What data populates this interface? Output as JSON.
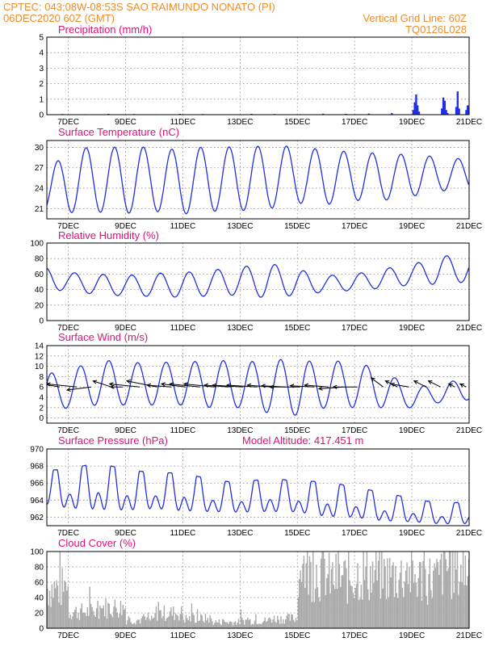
{
  "header": {
    "line1_left": "CPTEC:   043:08W-08:53S  SAO RAIMUNDO NONATO (PI)",
    "line2_left": "06DEC2020 60Z (GMT)",
    "line2_right": "Vertical Grid Line: 60Z",
    "line3_right": "TQ0126L028"
  },
  "colors": {
    "header": "#f08c28",
    "panel_title": "#e0107a",
    "curve": "#2030e0",
    "cloud_bars": "#aaaaaa",
    "wind_arrows": "#000000"
  },
  "x_axis": {
    "tick_labels": [
      "7DEC",
      "9DEC",
      "11DEC",
      "13DEC",
      "15DEC",
      "17DEC",
      "19DEC",
      "21DEC"
    ],
    "tick_days": [
      7,
      9,
      11,
      13,
      15,
      17,
      19,
      21
    ],
    "range_days": [
      6.25,
      21
    ]
  },
  "chart_data": [
    {
      "type": "bar",
      "title": "Precipitation (mm/h)",
      "ylim": [
        0,
        5
      ],
      "yticks": [
        0,
        1,
        2,
        3,
        4,
        5
      ],
      "x": [
        6.8,
        7.6,
        8.4,
        9.3,
        10.1,
        10.9,
        11.7,
        12.6,
        13.4,
        14.2,
        15.1,
        15.9,
        16.7,
        17.5,
        18.3,
        19.05,
        19.1,
        19.15,
        19.2,
        19.25,
        20.05,
        20.1,
        20.15,
        20.2,
        20.25,
        20.55,
        20.6,
        20.65,
        20.9,
        20.95,
        21.0
      ],
      "values": [
        0.04,
        0.03,
        0.05,
        0.04,
        0.03,
        0.05,
        0.04,
        0.03,
        0.05,
        0.04,
        0.03,
        0.06,
        0.05,
        0.07,
        0.1,
        0.3,
        0.8,
        1.3,
        0.6,
        0.2,
        0.4,
        1.1,
        0.9,
        0.3,
        0.1,
        0.5,
        1.5,
        0.4,
        0.3,
        0.6,
        0.2
      ]
    },
    {
      "type": "line",
      "title": "Surface Temperature (nC)",
      "ylim": [
        19.5,
        31
      ],
      "yticks": [
        21,
        24,
        27,
        30
      ],
      "day_phase": 0.62,
      "min_phase": 0.22,
      "daily_max": [
        25.5,
        29.5,
        30.2,
        29.9,
        30.1,
        29.5,
        30.3,
        29.9,
        30.3,
        30.1,
        29.6,
        29.3,
        29.1,
        28.9,
        28.6,
        28.2
      ],
      "daily_min": [
        20.6,
        20.4,
        20.5,
        20.3,
        20.6,
        20.2,
        20.6,
        20.7,
        21.0,
        21.8,
        21.6,
        22.2,
        22.2,
        22.8,
        23.6,
        23.8
      ]
    },
    {
      "type": "line",
      "title": "Relative Humidity (%)",
      "ylim": [
        0,
        100
      ],
      "yticks": [
        0,
        20,
        40,
        60,
        80,
        100
      ],
      "day_phase": 0.22,
      "min_phase": 0.62,
      "daily_max": [
        70,
        62,
        60,
        58,
        61,
        62,
        65,
        69,
        74,
        66,
        58,
        60,
        67,
        72,
        84,
        82
      ],
      "daily_min": [
        36,
        40,
        33,
        32,
        31,
        30,
        32,
        33,
        29,
        33,
        37,
        39,
        42,
        46,
        47,
        50
      ]
    },
    {
      "type": "line",
      "title": "Surface Wind (m/s)",
      "ylim": [
        -1,
        14
      ],
      "yticks": [
        0,
        2,
        4,
        6,
        8,
        10,
        12,
        14
      ],
      "day_phase": 0.42,
      "min_phase": 0.92,
      "daily_max": [
        8.5,
        9.0,
        11.5,
        10.5,
        11.0,
        10.5,
        11.5,
        10.5,
        11.5,
        11.0,
        11.0,
        11.0,
        9.0,
        6.0,
        6.5,
        8.0
      ],
      "daily_min": [
        0.5,
        2.0,
        2.5,
        2.5,
        2.5,
        2.5,
        2.0,
        2.0,
        1.0,
        0.5,
        2.0,
        2.0,
        2.0,
        2.0,
        3.0,
        3.5
      ],
      "arrows": {
        "x": [
          6.7,
          7.3,
          7.8,
          8.5,
          8.9,
          9.5,
          10.1,
          10.6,
          11.1,
          11.6,
          12.1,
          12.6,
          13.1,
          13.6,
          14.1,
          14.6,
          15.1,
          15.6,
          16.1,
          16.6,
          17.1,
          18.0,
          18.5,
          18.9,
          19.5,
          20.0,
          20.5,
          20.9
        ],
        "u": [
          -3,
          -5,
          -4,
          -3,
          -2,
          -5,
          -5,
          -4,
          -4,
          -5,
          -5,
          -4,
          -5,
          -5,
          -4,
          -4,
          -5,
          -4,
          -4,
          -4,
          -4,
          -2,
          -2,
          -3,
          -2,
          -2,
          -1,
          -1
        ],
        "v": [
          0.5,
          0.5,
          -0.5,
          1,
          0,
          0.5,
          1,
          0.3,
          0.5,
          0.5,
          0.5,
          0.3,
          0.3,
          0.3,
          0.3,
          0.2,
          0,
          0.2,
          0.3,
          -0.3,
          0,
          1.5,
          1,
          0.5,
          1,
          1,
          0.5,
          0.5
        ]
      }
    },
    {
      "type": "line",
      "title": "Surface Pressure (hPa)",
      "subtitle": "Model Altitude: 417.451 m",
      "ylim": [
        961,
        970
      ],
      "yticks": [
        962,
        964,
        966,
        968,
        970
      ],
      "day_phase": 0.55,
      "min_phase": 0.75,
      "semidiurnal": true,
      "daily_max": [
        967.5,
        967.6,
        968.4,
        967.6,
        967.2,
        967.2,
        966.4,
        966.0,
        966.6,
        966.2,
        966.2,
        965.5,
        964.9,
        964.2,
        963.6,
        963.8
      ],
      "daily_min": [
        963.0,
        962.3,
        962.0,
        962.0,
        962.3,
        962.0,
        962.0,
        962.0,
        962.0,
        962.0,
        961.4,
        961.4,
        961.0,
        961.0,
        960.8,
        960.8
      ]
    },
    {
      "type": "bar",
      "title": "Cloud Cover (%)",
      "ylim": [
        0,
        100
      ],
      "yticks": [
        0,
        20,
        40,
        60,
        80,
        100
      ],
      "daily_cover": [
        58,
        24,
        30,
        12,
        22,
        14,
        9,
        11,
        14,
        82,
        72,
        78,
        76,
        72,
        88,
        82
      ]
    }
  ]
}
